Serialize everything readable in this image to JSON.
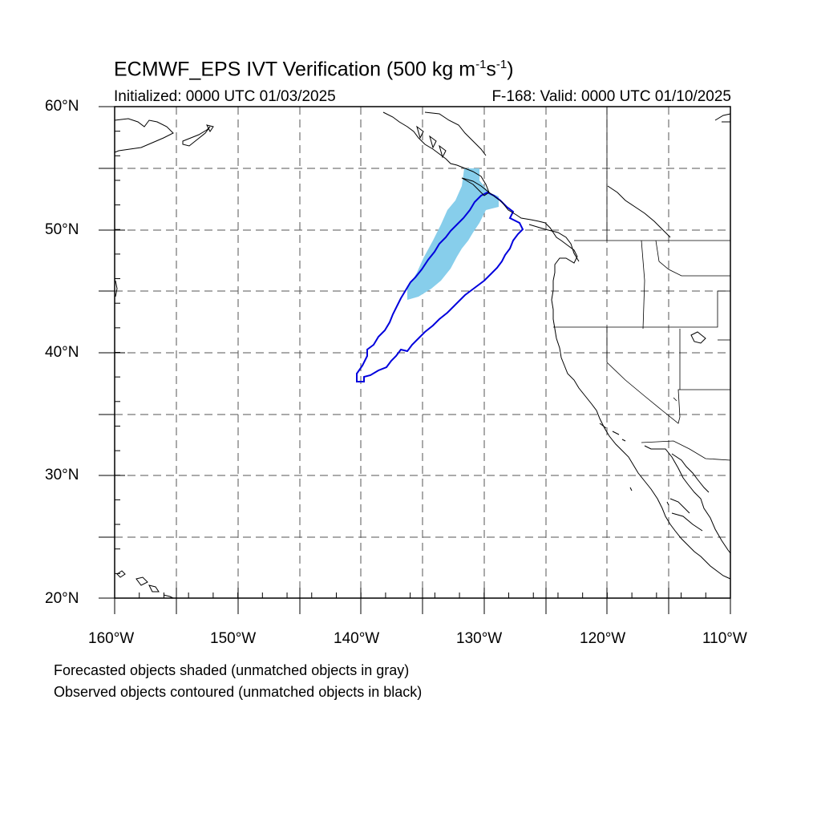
{
  "title": {
    "main": "ECMWF_EPS IVT Verification (500 kg m",
    "exp1": "-1",
    "mid": "s",
    "exp2": "-1",
    "end": ")"
  },
  "init_label": "Initialized: 0000 UTC 01/03/2025",
  "valid_label": "F-168: Valid: 0000 UTC 01/10/2025",
  "lat_labels": [
    "60°N",
    "50°N",
    "40°N",
    "30°N",
    "20°N"
  ],
  "lon_labels": [
    "160°W",
    "150°W",
    "140°W",
    "130°W",
    "120°W",
    "110°W"
  ],
  "notes": [
    "Forecasted objects shaded (unmatched objects in gray)",
    "Observed objects contoured (unmatched objects in black)"
  ],
  "colors": {
    "forecast_fill": "#87ceeb",
    "observed_contour": "#0000dd",
    "coast": "#000000",
    "grid": "#555555"
  }
}
